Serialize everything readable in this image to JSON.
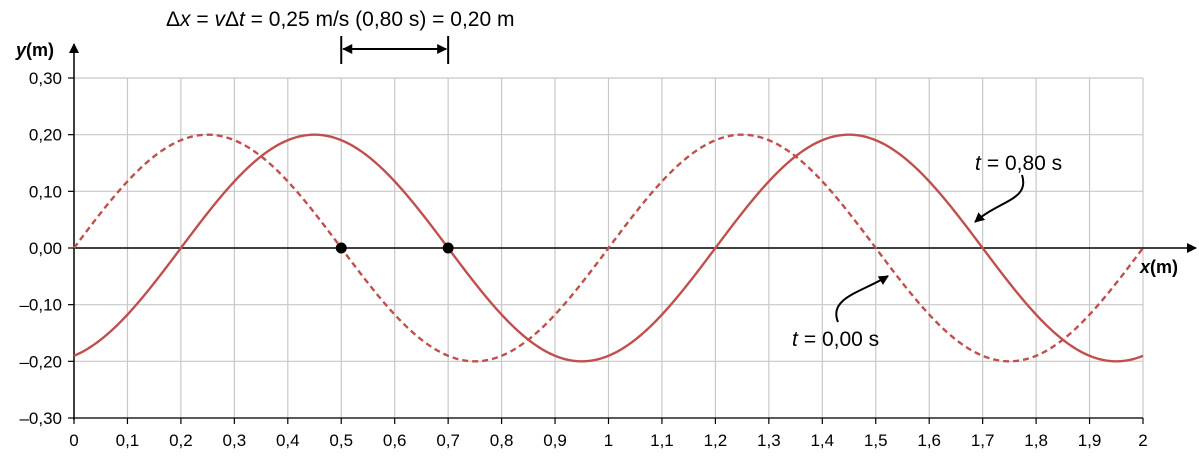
{
  "chart_data": {
    "type": "line",
    "xlabel_var": "x",
    "xlabel_unit": "(m)",
    "ylabel_var": "y",
    "ylabel_unit": "(m)",
    "xlim": [
      0,
      2
    ],
    "ylim": [
      -0.3,
      0.3
    ],
    "grid": true,
    "x_ticks": [
      0,
      0.1,
      0.2,
      0.3,
      0.4,
      0.5,
      0.6,
      0.7,
      0.8,
      0.9,
      1,
      1.1,
      1.2,
      1.3,
      1.4,
      1.5,
      1.6,
      1.7,
      1.8,
      1.9,
      2
    ],
    "x_tick_labels": [
      "0",
      "0,1",
      "0,2",
      "0,3",
      "0,4",
      "0,5",
      "0,6",
      "0,7",
      "0,8",
      "0,9",
      "1",
      "1,1",
      "1,2",
      "1,3",
      "1,4",
      "1,5",
      "1,6",
      "1,7",
      "1,8",
      "1,9",
      "2"
    ],
    "y_ticks": [
      0.3,
      0.2,
      0.1,
      0,
      -0.1,
      -0.2,
      -0.3
    ],
    "y_tick_labels": [
      "0,30",
      "0,20",
      "0,10",
      "0,00",
      "–0,10",
      "–0,20",
      "–0,30"
    ],
    "series": [
      {
        "style": "dashed",
        "color": "#c0504d",
        "amplitude": 0.2,
        "wavelength": 1.0,
        "x_shift": 0.0,
        "label_var": "t",
        "label_value": "= 0,00 s"
      },
      {
        "style": "solid",
        "color": "#c0504d",
        "amplitude": 0.2,
        "wavelength": 1.0,
        "x_shift": 0.2,
        "label_var": "t",
        "label_value": "= 0,80 s"
      }
    ],
    "marked_points": [
      {
        "x": 0.5,
        "y": 0.0
      },
      {
        "x": 0.7,
        "y": 0.0
      }
    ],
    "annotation": {
      "pre": "Δ",
      "var1": "x",
      "mid1": " = ",
      "var2": "v",
      "mid2": "Δ",
      "var3": "t",
      "rest": " = 0,25 m/s (0,80 s) = 0,20 m",
      "x_start": 0.5,
      "x_end": 0.7
    }
  }
}
